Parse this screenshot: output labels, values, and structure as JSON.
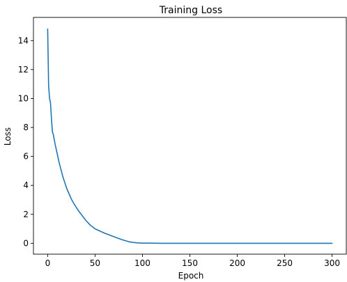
{
  "chart_data": {
    "type": "line",
    "title": "Training Loss",
    "xlabel": "Epoch",
    "ylabel": "Loss",
    "xlim": [
      -15,
      315
    ],
    "ylim": [
      -0.75,
      15.6
    ],
    "xticks": [
      0,
      50,
      100,
      150,
      200,
      250,
      300
    ],
    "yticks": [
      0,
      2,
      4,
      6,
      8,
      10,
      12,
      14
    ],
    "grid": false,
    "line_color": "#1f77b4",
    "series": [
      {
        "x": [
          0,
          1,
          2,
          3,
          4,
          5,
          6,
          8,
          10,
          12,
          14,
          16,
          18,
          20,
          22,
          25,
          28,
          30,
          33,
          36,
          40,
          45,
          50,
          55,
          60,
          65,
          70,
          75,
          80,
          85,
          90,
          95,
          100,
          110,
          120,
          150,
          200,
          250,
          300
        ],
        "y": [
          14.8,
          10.9,
          10.0,
          9.7,
          8.6,
          7.7,
          7.5,
          6.8,
          6.2,
          5.6,
          5.1,
          4.6,
          4.2,
          3.8,
          3.5,
          3.05,
          2.7,
          2.5,
          2.2,
          1.95,
          1.6,
          1.25,
          1.0,
          0.85,
          0.7,
          0.58,
          0.45,
          0.33,
          0.22,
          0.12,
          0.06,
          0.03,
          0.01,
          0.01,
          0.0,
          0.0,
          0.0,
          0.0,
          0.0
        ]
      }
    ]
  }
}
